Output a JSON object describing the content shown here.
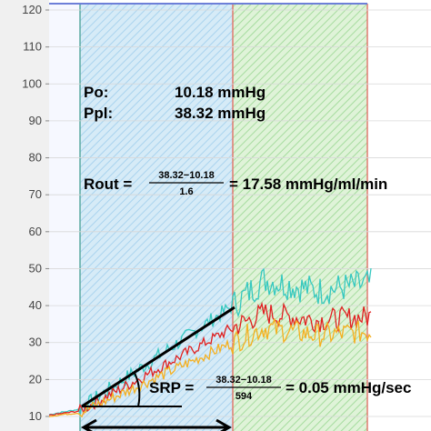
{
  "chart_data": {
    "type": "line",
    "title": "",
    "xlabel": "",
    "ylabel": "",
    "ylim": [
      10,
      120
    ],
    "yticks": [
      10,
      20,
      30,
      40,
      50,
      60,
      70,
      80,
      90,
      100,
      110,
      120
    ],
    "grid": true,
    "regions": [
      {
        "label": "",
        "color": "#cfe6f5",
        "hatch": "#8cc4e6",
        "border": "#5aa9a0"
      },
      {
        "label": "",
        "color": "#d8f0d0",
        "hatch": "#8fd48a",
        "border": "#e07a70"
      }
    ],
    "series": [
      {
        "color": "#35c8c0",
        "baseline": [
          10.5,
          12,
          40,
          47,
          44,
          46
        ]
      },
      {
        "color": "#e02020",
        "baseline": [
          10.3,
          11.5,
          34,
          38,
          36,
          37
        ]
      },
      {
        "color": "#f5b020",
        "baseline": [
          10.1,
          11,
          30,
          34,
          32,
          33
        ]
      }
    ],
    "annotations": {
      "po_label": "Po:",
      "po_value": "10.18 mmHg",
      "ppl_label": "Ppl:",
      "ppl_value": "38.32 mmHg",
      "rout_label": "Rout =",
      "rout_numerator": "38.32−10.18",
      "rout_denominator": "1.6",
      "rout_result": "= 17.58 mmHg/ml/min",
      "srp_label": "SRP =",
      "srp_numerator": "38.32−10.18",
      "srp_denominator": "594",
      "srp_result": "= 0.05 mmHg/sec"
    }
  }
}
